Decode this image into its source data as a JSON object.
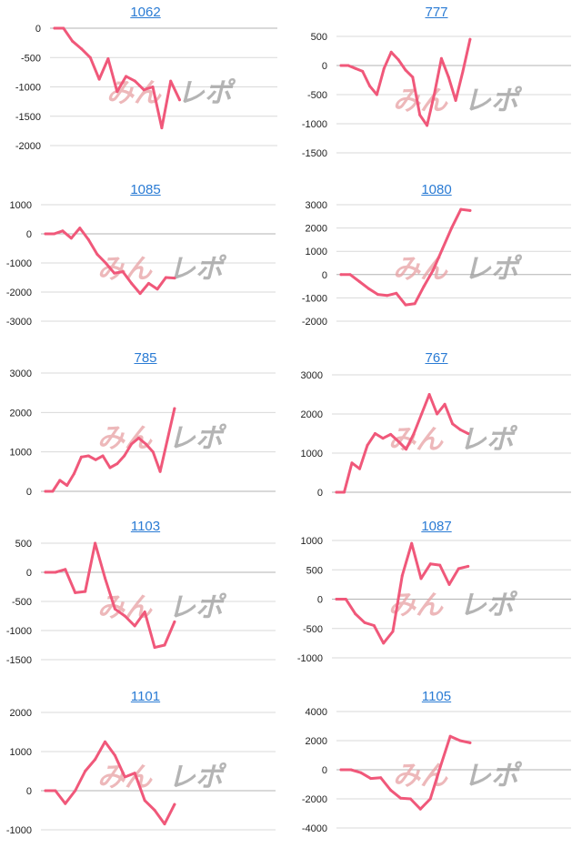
{
  "watermark": {
    "part1": "みん",
    "part2": "レポ",
    "color1": "#e7a0a3",
    "color2": "#9b9b9b"
  },
  "colors": {
    "line": "#f0587a",
    "title": "#2a7bd4",
    "grid": "#d9d9d9"
  },
  "chart_data": [
    {
      "type": "line",
      "title": "1062",
      "grid": true,
      "ylim": [
        -2000,
        0
      ],
      "yticks": [
        "0",
        "-500",
        "-1000",
        "-1500",
        "-2000"
      ],
      "ytick_values": [
        0,
        -500,
        -1000,
        -1500,
        -2000
      ],
      "values": [
        0,
        0,
        -220,
        -350,
        -500,
        -870,
        -520,
        -1080,
        -820,
        -900,
        -1050,
        -1000,
        -1700,
        -900,
        -1220
      ]
    },
    {
      "type": "line",
      "title": "777",
      "grid": true,
      "ylim": [
        -1500,
        500
      ],
      "yticks": [
        "500",
        "0",
        "-500",
        "-1000",
        "-1500"
      ],
      "ytick_values": [
        500,
        0,
        -500,
        -1000,
        -1500
      ],
      "values": [
        0,
        0,
        -50,
        -100,
        -350,
        -500,
        -50,
        230,
        100,
        -80,
        -200,
        -850,
        -1030,
        -500,
        120,
        -200,
        -600,
        -100,
        450
      ]
    },
    {
      "type": "line",
      "title": "1085",
      "grid": true,
      "ylim": [
        -3000,
        1000
      ],
      "yticks": [
        "1000",
        "0",
        "-1000",
        "-2000",
        "-3000"
      ],
      "ytick_values": [
        1000,
        0,
        -1000,
        -2000,
        -3000
      ],
      "values": [
        0,
        0,
        100,
        -150,
        200,
        -200,
        -700,
        -1000,
        -1350,
        -1300,
        -1700,
        -2050,
        -1700,
        -1900,
        -1500,
        -1520
      ]
    },
    {
      "type": "line",
      "title": "1080",
      "grid": true,
      "ylim": [
        -2000,
        3000
      ],
      "yticks": [
        "3000",
        "2000",
        "1000",
        "0",
        "-1000",
        "-2000"
      ],
      "ytick_values": [
        3000,
        2000,
        1000,
        0,
        -1000,
        -2000
      ],
      "values": [
        0,
        0,
        -300,
        -600,
        -850,
        -900,
        -800,
        -1300,
        -1250,
        -500,
        200,
        1100,
        2000,
        2800,
        2750
      ]
    },
    {
      "type": "line",
      "title": "785",
      "grid": true,
      "ylim": [
        0,
        3000
      ],
      "yticks": [
        "3000",
        "2000",
        "1000",
        "0"
      ],
      "ytick_values": [
        3000,
        2000,
        1000,
        0
      ],
      "values": [
        0,
        0,
        280,
        150,
        450,
        870,
        900,
        800,
        900,
        600,
        700,
        900,
        1200,
        1350,
        1200,
        1000,
        500,
        1300,
        2100
      ]
    },
    {
      "type": "line",
      "title": "767",
      "grid": true,
      "ylim": [
        0,
        3000
      ],
      "yticks": [
        "3000",
        "2000",
        "1000",
        "0"
      ],
      "ytick_values": [
        3000,
        2000,
        1000,
        0
      ],
      "values": [
        0,
        0,
        750,
        600,
        1200,
        1500,
        1380,
        1480,
        1300,
        1100,
        1500,
        2000,
        2500,
        2000,
        2250,
        1750,
        1600,
        1500
      ]
    },
    {
      "type": "line",
      "title": "1103",
      "grid": true,
      "ylim": [
        -1500,
        500
      ],
      "yticks": [
        "500",
        "0",
        "-500",
        "-1000",
        "-1500"
      ],
      "ytick_values": [
        500,
        0,
        -500,
        -1000,
        -1500
      ],
      "values": [
        0,
        0,
        50,
        -350,
        -330,
        500,
        -100,
        -630,
        -750,
        -920,
        -680,
        -1290,
        -1250,
        -850
      ]
    },
    {
      "type": "line",
      "title": "1087",
      "grid": true,
      "ylim": [
        -1000,
        1000
      ],
      "yticks": [
        "1000",
        "500",
        "0",
        "-500",
        "-1000"
      ],
      "ytick_values": [
        1000,
        500,
        0,
        -500,
        -1000
      ],
      "values": [
        0,
        0,
        -250,
        -400,
        -450,
        -750,
        -550,
        400,
        950,
        350,
        600,
        580,
        250,
        520,
        560
      ]
    },
    {
      "type": "line",
      "title": "1101",
      "grid": true,
      "ylim": [
        -1000,
        2000
      ],
      "yticks": [
        "2000",
        "1000",
        "0",
        "-1000"
      ],
      "ytick_values": [
        2000,
        1000,
        0,
        -1000
      ],
      "values": [
        0,
        0,
        -330,
        0,
        500,
        800,
        1250,
        900,
        350,
        450,
        -250,
        -500,
        -850,
        -350
      ]
    },
    {
      "type": "line",
      "title": "1105",
      "grid": true,
      "ylim": [
        -4000,
        4000
      ],
      "yticks": [
        "4000",
        "2000",
        "0",
        "-2000",
        "-4000"
      ],
      "ytick_values": [
        4000,
        2000,
        0,
        -2000,
        -4000
      ],
      "values": [
        0,
        0,
        -200,
        -600,
        -550,
        -1400,
        -1950,
        -2000,
        -2700,
        -2000,
        200,
        2300,
        2000,
        1850
      ]
    }
  ]
}
